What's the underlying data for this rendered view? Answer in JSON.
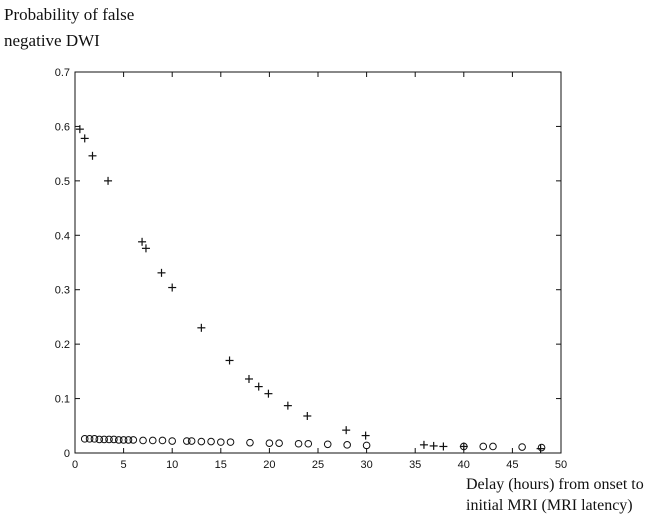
{
  "chart_data": {
    "type": "scatter",
    "title": "",
    "ylabel_lines": [
      "Probability of false",
      "negative DWI"
    ],
    "xlabel_lines": [
      "Delay (hours) from onset to",
      "initial MRI (MRI latency)"
    ],
    "xlim": [
      0,
      50
    ],
    "ylim": [
      0,
      0.7
    ],
    "x_ticks": [
      0,
      5,
      10,
      15,
      20,
      25,
      30,
      35,
      40,
      45,
      50
    ],
    "y_ticks": [
      0,
      0.1,
      0.2,
      0.3,
      0.4,
      0.5,
      0.6,
      0.7
    ],
    "grid": false,
    "series": [
      {
        "marker": "plus",
        "points": [
          [
            0.5,
            0.595
          ],
          [
            1,
            0.578
          ],
          [
            1.8,
            0.546
          ],
          [
            3.4,
            0.5
          ],
          [
            6.9,
            0.388
          ],
          [
            7.3,
            0.376
          ],
          [
            8.9,
            0.331
          ],
          [
            10,
            0.304
          ],
          [
            13,
            0.23
          ],
          [
            15.9,
            0.17
          ],
          [
            17.9,
            0.136
          ],
          [
            18.9,
            0.122
          ],
          [
            19.9,
            0.109
          ],
          [
            21.9,
            0.087
          ],
          [
            23.9,
            0.068
          ],
          [
            27.9,
            0.042
          ],
          [
            29.9,
            0.032
          ],
          [
            35.9,
            0.015
          ],
          [
            36.9,
            0.013
          ],
          [
            37.9,
            0.012
          ],
          [
            40,
            0.012
          ],
          [
            47.9,
            0.008
          ]
        ]
      },
      {
        "marker": "circle",
        "points": [
          [
            1,
            0.026
          ],
          [
            1.5,
            0.026
          ],
          [
            2,
            0.026
          ],
          [
            2.5,
            0.025
          ],
          [
            3,
            0.025
          ],
          [
            3.5,
            0.025
          ],
          [
            4,
            0.025
          ],
          [
            4.5,
            0.024
          ],
          [
            5,
            0.024
          ],
          [
            5.5,
            0.024
          ],
          [
            6,
            0.024
          ],
          [
            7,
            0.023
          ],
          [
            8,
            0.023
          ],
          [
            9,
            0.023
          ],
          [
            10,
            0.022
          ],
          [
            11.5,
            0.022
          ],
          [
            12,
            0.022
          ],
          [
            13,
            0.021
          ],
          [
            14,
            0.021
          ],
          [
            15,
            0.02
          ],
          [
            16,
            0.02
          ],
          [
            18,
            0.019
          ],
          [
            20,
            0.018
          ],
          [
            21,
            0.018
          ],
          [
            23,
            0.017
          ],
          [
            24,
            0.017
          ],
          [
            26,
            0.016
          ],
          [
            28,
            0.015
          ],
          [
            30,
            0.014
          ],
          [
            40,
            0.012
          ],
          [
            42,
            0.012
          ],
          [
            43,
            0.012
          ],
          [
            46,
            0.011
          ],
          [
            48,
            0.01
          ]
        ]
      }
    ]
  }
}
